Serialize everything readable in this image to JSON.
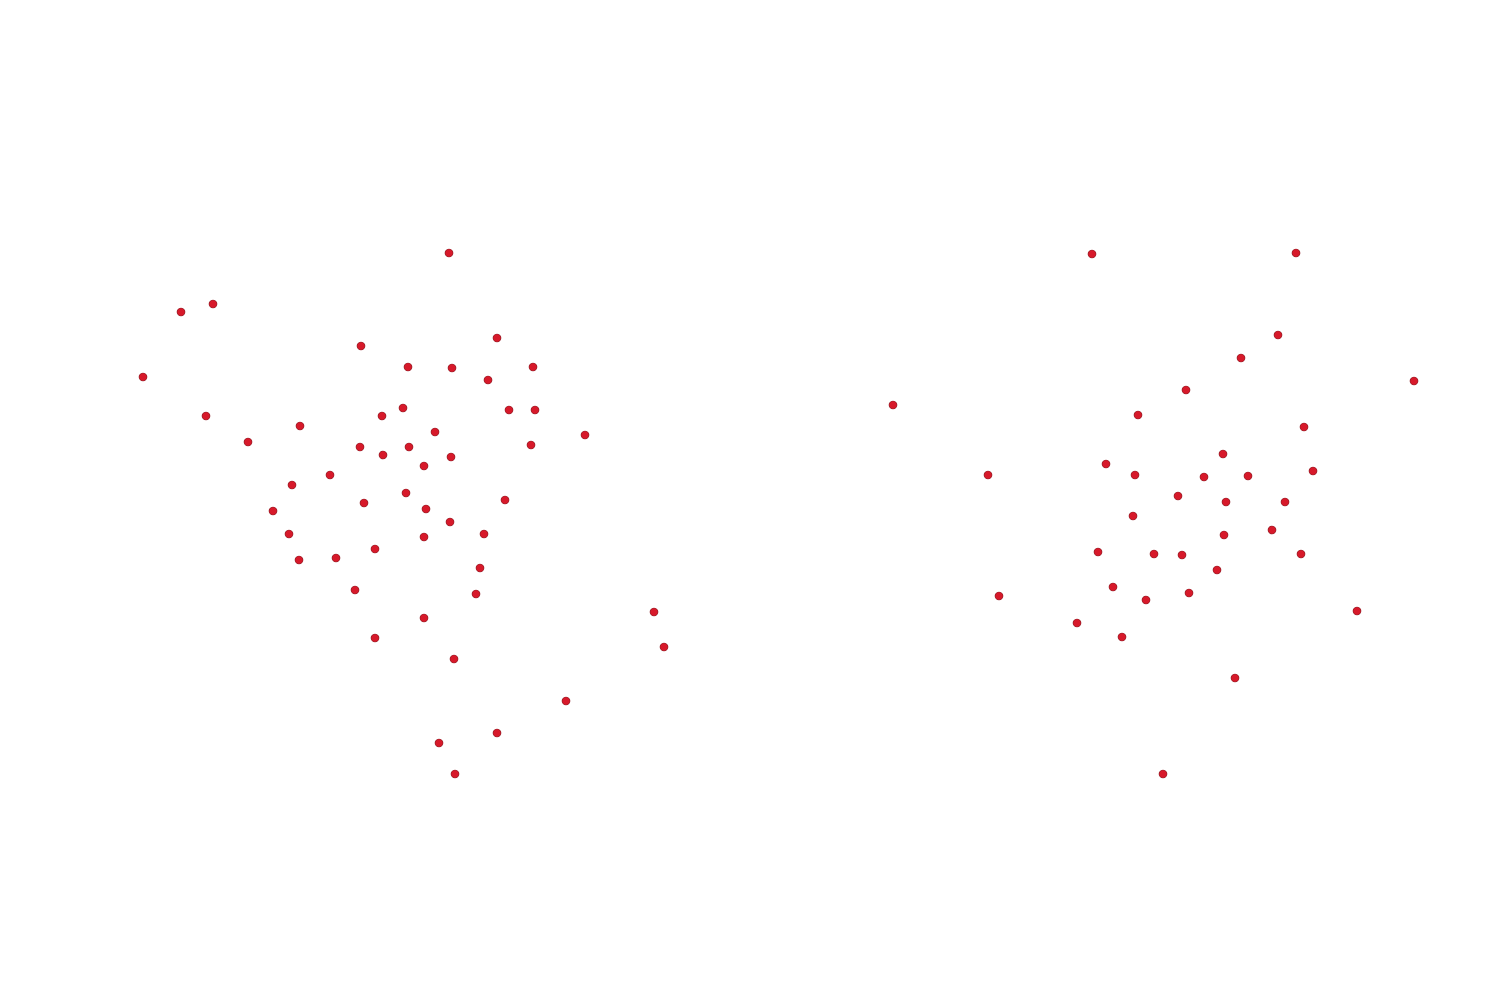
{
  "chart_data": [
    {
      "type": "scatter",
      "color": "#d7192a",
      "xlim": [
        0,
        750
      ],
      "ylim": [
        1000,
        0
      ],
      "x": [
        449,
        181,
        213,
        143,
        361,
        497,
        408,
        452,
        533,
        488,
        206,
        382,
        403,
        509,
        535,
        300,
        248,
        435,
        585,
        360,
        409,
        531,
        383,
        451,
        424,
        330,
        292,
        406,
        364,
        505,
        273,
        426,
        450,
        289,
        424,
        484,
        375,
        299,
        336,
        480,
        355,
        476,
        654,
        424,
        375,
        664,
        454,
        566,
        497,
        439,
        455
      ],
      "values": [
        253,
        312,
        304,
        377,
        346,
        338,
        367,
        368,
        367,
        380,
        416,
        416,
        408,
        410,
        410,
        426,
        442,
        432,
        435,
        447,
        447,
        445,
        455,
        457,
        466,
        475,
        485,
        493,
        503,
        500,
        511,
        509,
        522,
        534,
        537,
        534,
        549,
        560,
        558,
        568,
        590,
        594,
        612,
        618,
        638,
        647,
        659,
        701,
        733,
        743,
        774
      ]
    },
    {
      "type": "scatter",
      "color": "#d7192a",
      "xlim": [
        750,
        1500
      ],
      "ylim": [
        1000,
        0
      ],
      "x": [
        1092,
        1296,
        1278,
        1241,
        1414,
        893,
        1186,
        1138,
        1304,
        1223,
        1106,
        988,
        1135,
        1204,
        1248,
        1313,
        1178,
        1226,
        1285,
        1133,
        1272,
        1224,
        1098,
        1154,
        1182,
        1301,
        1217,
        1113,
        999,
        1189,
        1146,
        1357,
        1077,
        1122,
        1235,
        1163
      ],
      "values": [
        254,
        253,
        335,
        358,
        381,
        405,
        390,
        415,
        427,
        454,
        464,
        475,
        475,
        477,
        476,
        471,
        496,
        502,
        502,
        516,
        530,
        535,
        552,
        554,
        555,
        554,
        570,
        587,
        596,
        593,
        600,
        611,
        623,
        637,
        678,
        774
      ]
    }
  ]
}
